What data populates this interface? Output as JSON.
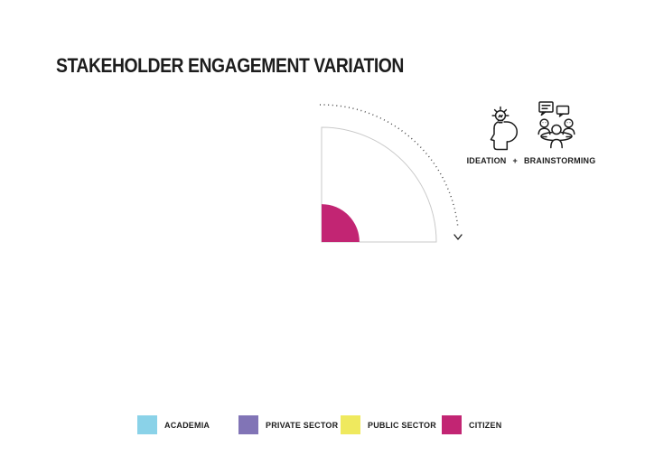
{
  "title": "STAKEHOLDER ENGAGEMENT VARIATION",
  "stage": {
    "icons": [
      "ideation-icon",
      "brainstorming-icon"
    ],
    "labels": {
      "left": "IDEATION",
      "separator": "+",
      "right": "BRAINSTORMING"
    }
  },
  "chart_data": {
    "type": "pie",
    "variant": "quarter-circle radial sector, 90 degree plot area with wedge radius encoding value",
    "title": "STAKEHOLDER ENGAGEMENT VARIATION",
    "sector_angle_deg": 90,
    "outline_color": "#c9c9c9",
    "guide_arc": {
      "style": "dotted",
      "direction": "clockwise",
      "arrow": "down",
      "color": "#4a4a4a"
    },
    "categories": [
      "ACADEMIA",
      "PRIVATE SECTOR",
      "PUBLIC SECTOR",
      "CITIZEN"
    ],
    "series": [
      {
        "name": "CITIZEN",
        "angle_deg": 90,
        "radius_fraction": 0.33,
        "color": "#c22573"
      },
      {
        "name": "ACADEMIA",
        "angle_deg": 0,
        "radius_fraction": 0,
        "color": "#8ad2e8"
      },
      {
        "name": "PRIVATE SECTOR",
        "angle_deg": 0,
        "radius_fraction": 0,
        "color": "#8174b6"
      },
      {
        "name": "PUBLIC SECTOR",
        "angle_deg": 0,
        "radius_fraction": 0,
        "color": "#efe95e"
      }
    ],
    "legend_position": "bottom",
    "note": "Only the CITIZEN wedge is visible in this frame, at roughly one third of the full sector radius"
  },
  "legend": {
    "items": [
      {
        "label": "ACADEMIA",
        "color": "#8ad2e8"
      },
      {
        "label": "PRIVATE SECTOR",
        "color": "#8174b6"
      },
      {
        "label": "PUBLIC SECTOR",
        "color": "#efe95e"
      },
      {
        "label": "CITIZEN",
        "color": "#c22573"
      }
    ]
  }
}
